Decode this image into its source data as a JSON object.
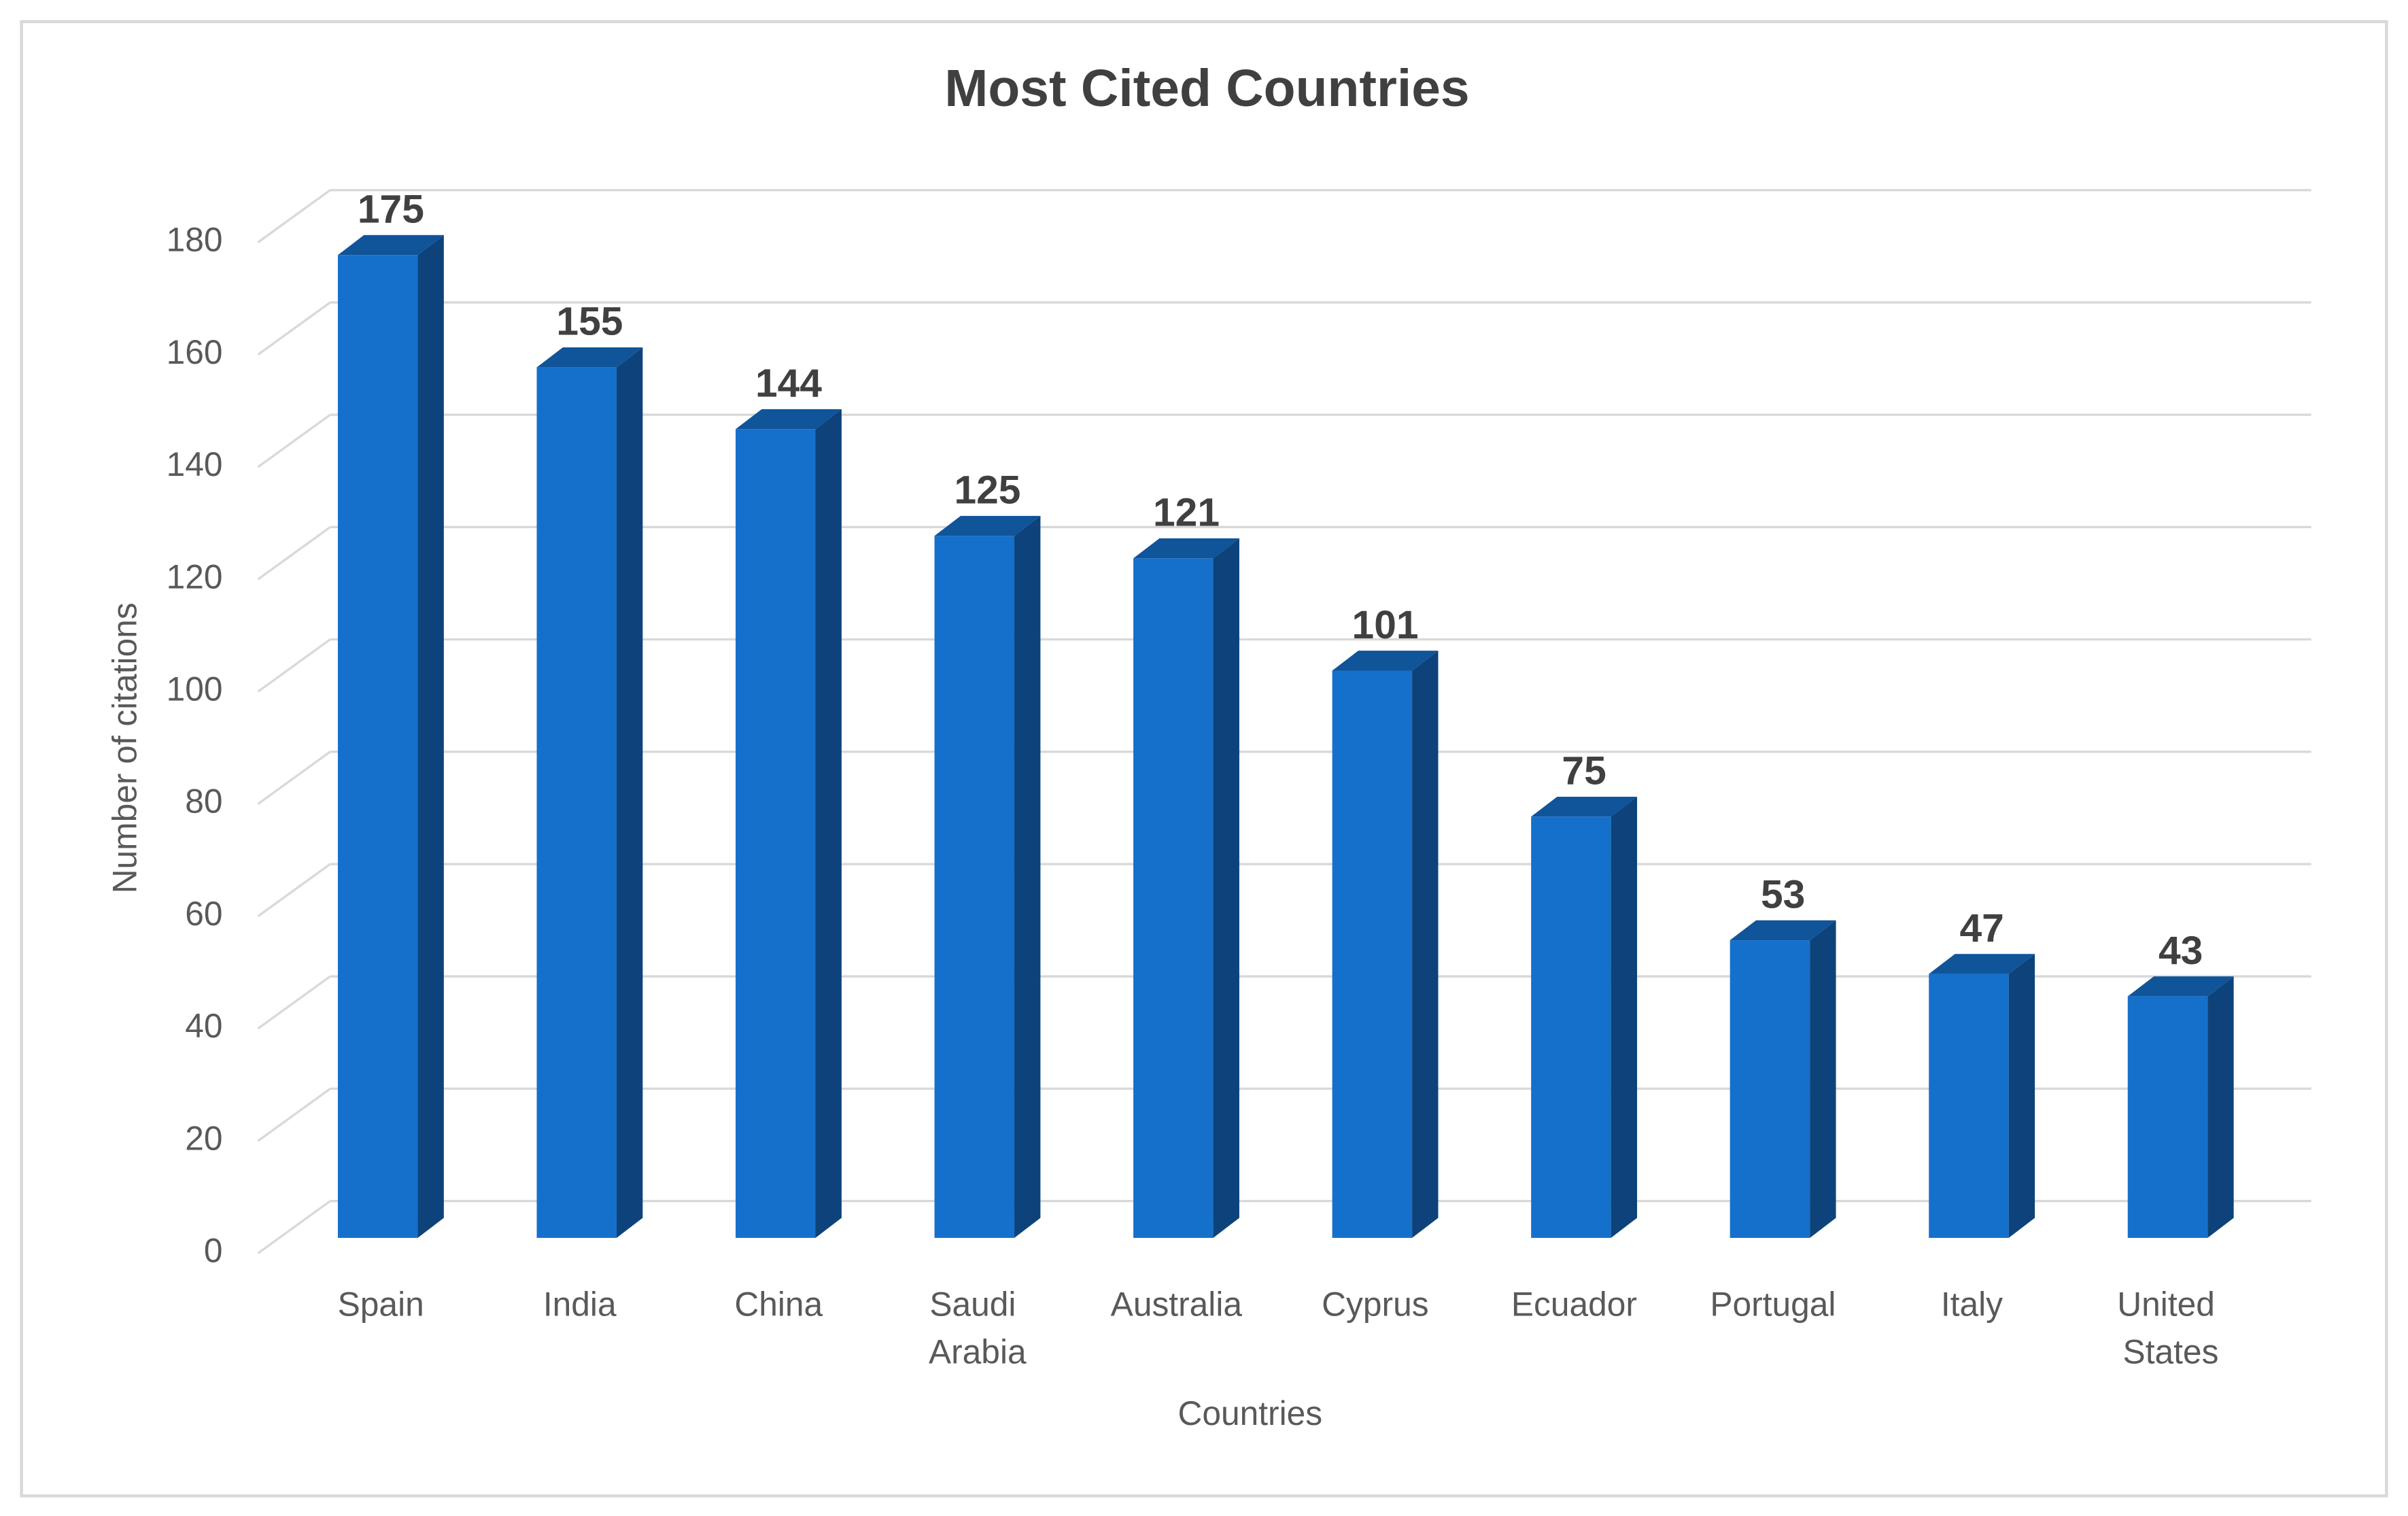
{
  "chart_data": {
    "type": "bar3d",
    "title": "Most Cited Countries",
    "x_label": "Countries",
    "y_label": "Number of citations",
    "categories": [
      "Spain",
      "India",
      "China",
      "Saudi Arabia",
      "Australia",
      "Cyprus",
      "Ecuador",
      "Portugal",
      "Italy",
      "United States"
    ],
    "values": [
      175,
      155,
      144,
      125,
      121,
      101,
      75,
      53,
      47,
      43
    ],
    "color": "#1570cc",
    "ylim": [
      0,
      180
    ],
    "yticks": [
      0,
      20,
      40,
      60,
      80,
      100,
      120,
      140,
      160,
      180
    ],
    "grid": true
  }
}
